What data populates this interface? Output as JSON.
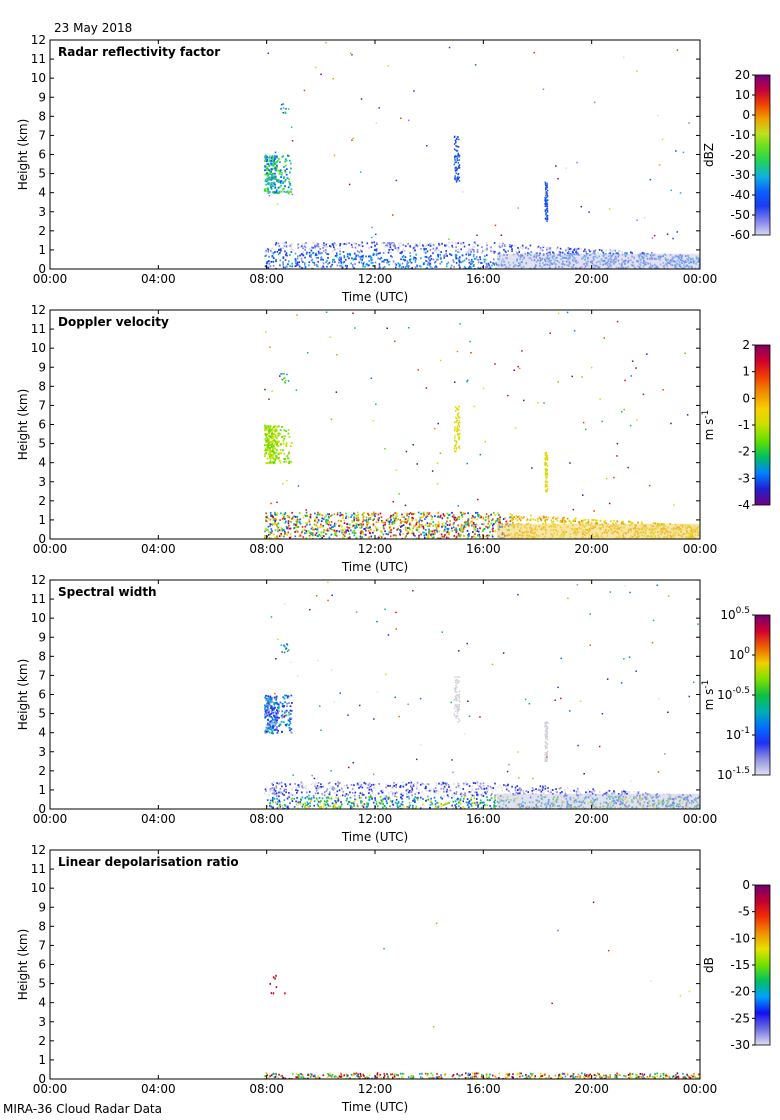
{
  "date": "23 May 2018",
  "footer": "MIRA-36 Cloud Radar Data",
  "chart_data": [
    {
      "type": "heatmap",
      "title": "Radar reflectivity factor",
      "xlabel": "Time (UTC)",
      "ylabel": "Height (km)",
      "xticks": [
        "00:00",
        "04:00",
        "08:00",
        "12:00",
        "16:00",
        "20:00",
        "00:00"
      ],
      "xlim_hours": [
        0,
        24
      ],
      "ylim": [
        0,
        12
      ],
      "yticks": [
        0,
        1,
        2,
        3,
        4,
        5,
        6,
        7,
        8,
        9,
        10,
        11,
        12
      ],
      "colorbar": {
        "unit_label": "dBZ",
        "ticks": [
          "20",
          "10",
          "0",
          "-10",
          "-20",
          "-30",
          "-40",
          "-50",
          "-60"
        ],
        "range": [
          -60,
          20
        ]
      },
      "features": [
        {
          "kind": "boundary layer echo",
          "t_start": 7.9,
          "t_end": 24,
          "top_km": 1.5
        },
        {
          "kind": "mid-level cloud",
          "t_start": 7.9,
          "t_end": 8.9,
          "h_bottom": 4.0,
          "h_top": 6.0
        },
        {
          "kind": "fall streak",
          "t": 15.0,
          "h_bottom": 4.5,
          "h_top": 7.0
        },
        {
          "kind": "fall streak",
          "t": 18.3,
          "h_bottom": 2.5,
          "h_top": 4.5
        }
      ]
    },
    {
      "type": "heatmap",
      "title": "Doppler velocity",
      "xlabel": "Time (UTC)",
      "ylabel": "Height (km)",
      "xticks": [
        "00:00",
        "04:00",
        "08:00",
        "12:00",
        "16:00",
        "20:00",
        "00:00"
      ],
      "xlim_hours": [
        0,
        24
      ],
      "ylim": [
        0,
        12
      ],
      "yticks": [
        0,
        1,
        2,
        3,
        4,
        5,
        6,
        7,
        8,
        9,
        10,
        11,
        12
      ],
      "colorbar": {
        "unit_label": "m s-1",
        "ticks": [
          "2",
          "1",
          "0",
          "-1",
          "-2",
          "-3",
          "-4"
        ],
        "range": [
          -4,
          2
        ]
      }
    },
    {
      "type": "heatmap",
      "title": "Spectral width",
      "xlabel": "Time (UTC)",
      "ylabel": "Height (km)",
      "xticks": [
        "00:00",
        "04:00",
        "08:00",
        "12:00",
        "16:00",
        "20:00",
        "00:00"
      ],
      "xlim_hours": [
        0,
        24
      ],
      "ylim": [
        0,
        12
      ],
      "yticks": [
        0,
        1,
        2,
        3,
        4,
        5,
        6,
        7,
        8,
        9,
        10,
        11,
        12
      ],
      "colorbar": {
        "unit_label": "m s-1",
        "ticks": [
          "10^0.5",
          "10^0",
          "10^-0.5",
          "10^-1",
          "10^-1.5"
        ],
        "scale": "log",
        "range": [
          -1.5,
          0.5
        ]
      }
    },
    {
      "type": "heatmap",
      "title": "Linear depolarisation ratio",
      "xlabel": "Time (UTC)",
      "ylabel": "Height (km)",
      "xticks": [
        "00:00",
        "04:00",
        "08:00",
        "12:00",
        "16:00",
        "20:00",
        "00:00"
      ],
      "xlim_hours": [
        0,
        24
      ],
      "ylim": [
        0,
        12
      ],
      "yticks": [
        0,
        1,
        2,
        3,
        4,
        5,
        6,
        7,
        8,
        9,
        10,
        11,
        12
      ],
      "colorbar": {
        "unit_label": "dB",
        "ticks": [
          "0",
          "-5",
          "-10",
          "-15",
          "-20",
          "-25",
          "-30"
        ],
        "range": [
          -30,
          0
        ]
      }
    }
  ]
}
